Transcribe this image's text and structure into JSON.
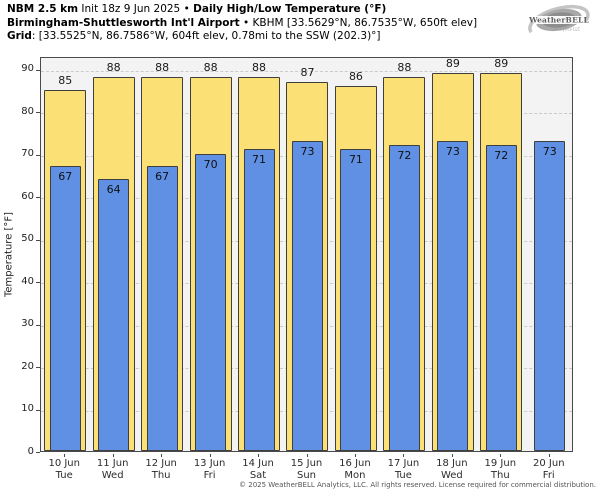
{
  "header": {
    "line1": {
      "model": "NBM 2.5 km",
      "init": "Init 18z 9 Jun 2025",
      "sep": "•",
      "product": "Daily High/Low Temperature (°F)"
    },
    "line2": {
      "station_name": "Birmingham-Shuttlesworth Int'l Airport",
      "sep": "•",
      "station_meta": "KBHM [33.5629°N, 86.7535°W, 650ft elev]"
    },
    "line3": {
      "label": "Grid",
      "value": ": [33.5525°N, 86.7586°W, 604ft elev, 0.78mi to the SSW (202.3)°]"
    }
  },
  "logo": {
    "text": "WeatherBELL",
    "sub": "Analytics LLC"
  },
  "chart_data": {
    "type": "bar",
    "title": "Daily High/Low Temperature (°F)",
    "ylabel": "Temperature [°F]",
    "yticks": [
      0,
      10,
      20,
      30,
      40,
      50,
      60,
      70,
      80,
      90
    ],
    "ylim": [
      0,
      93
    ],
    "grid": "horizontal-dashed",
    "legend": "none",
    "categories": [
      {
        "date": "10 Jun",
        "day": "Tue"
      },
      {
        "date": "11 Jun",
        "day": "Wed"
      },
      {
        "date": "12 Jun",
        "day": "Thu"
      },
      {
        "date": "13 Jun",
        "day": "Fri"
      },
      {
        "date": "14 Jun",
        "day": "Sat"
      },
      {
        "date": "15 Jun",
        "day": "Sun"
      },
      {
        "date": "16 Jun",
        "day": "Mon"
      },
      {
        "date": "17 Jun",
        "day": "Tue"
      },
      {
        "date": "18 Jun",
        "day": "Wed"
      },
      {
        "date": "19 Jun",
        "day": "Thu"
      },
      {
        "date": "20 Jun",
        "day": "Fri"
      }
    ],
    "series": [
      {
        "name": "Daily High",
        "color": "#FBE175",
        "values": [
          85,
          88,
          88,
          88,
          88,
          87,
          86,
          88,
          89,
          89,
          null
        ]
      },
      {
        "name": "Daily Low",
        "color": "#5F90E4",
        "values": [
          67,
          64,
          67,
          70,
          71,
          73,
          71,
          72,
          73,
          72,
          73
        ]
      }
    ]
  },
  "colors": {
    "plot_bg": "#F3F3F3",
    "grid": "#CBCBCB",
    "spine": "#4A4A4A",
    "bar_border": "#3F3F3F",
    "high_fill": "#FBE175",
    "low_fill": "#5F90E4"
  },
  "footer": {
    "copyright": "© 2025 WeatherBELL Analytics, LLC. All rights reserved. License required for commercial distribution."
  }
}
